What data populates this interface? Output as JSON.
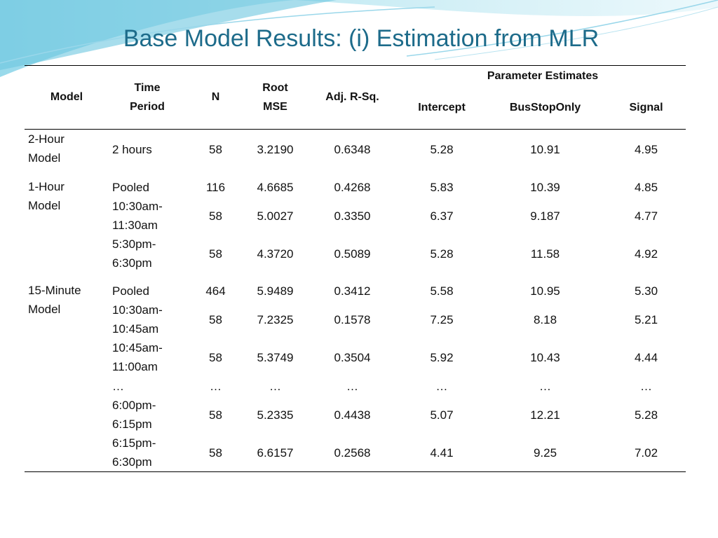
{
  "title": "Base Model Results: (i) Estimation from MLR",
  "table": {
    "header": [
      "Model",
      "Time Period",
      "N",
      "Root MSE",
      "Adj. R-Sq."
    ],
    "group_header": "Parameter Estimates",
    "subheader": [
      "Intercept",
      "BusStopOnly",
      "Signal"
    ],
    "groups": [
      {
        "model": "2-Hour Model",
        "rows": [
          [
            "2 hours",
            "58",
            "3.2190",
            "0.6348",
            "5.28",
            "10.91",
            "4.95"
          ]
        ]
      },
      {
        "model": "1-Hour Model",
        "rows": [
          [
            "Pooled",
            "116",
            "4.6685",
            "0.4268",
            "5.83",
            "10.39",
            "4.85"
          ],
          [
            "10:30am-11:30am",
            "58",
            "5.0027",
            "0.3350",
            "6.37",
            "9.187",
            "4.77"
          ],
          [
            "5:30pm-6:30pm",
            "58",
            "4.3720",
            "0.5089",
            "5.28",
            "11.58",
            "4.92"
          ]
        ]
      },
      {
        "model": "15-Minute Model",
        "rows": [
          [
            "Pooled",
            "464",
            "5.9489",
            "0.3412",
            "5.58",
            "10.95",
            "5.30"
          ],
          [
            "10:30am-10:45am",
            "58",
            "7.2325",
            "0.1578",
            "7.25",
            "8.18",
            "5.21"
          ],
          [
            "10:45am-11:00am",
            "58",
            "5.3749",
            "0.3504",
            "5.92",
            "10.43",
            "4.44"
          ],
          [
            "…",
            "…",
            "…",
            "…",
            "…",
            "…",
            "…"
          ],
          [
            "6:00pm-6:15pm",
            "58",
            "5.2335",
            "0.4438",
            "5.07",
            "12.21",
            "5.28"
          ],
          [
            "6:15pm-6:30pm",
            "58",
            "6.6157",
            "0.2568",
            "4.41",
            "9.25",
            "7.02"
          ]
        ]
      }
    ]
  }
}
